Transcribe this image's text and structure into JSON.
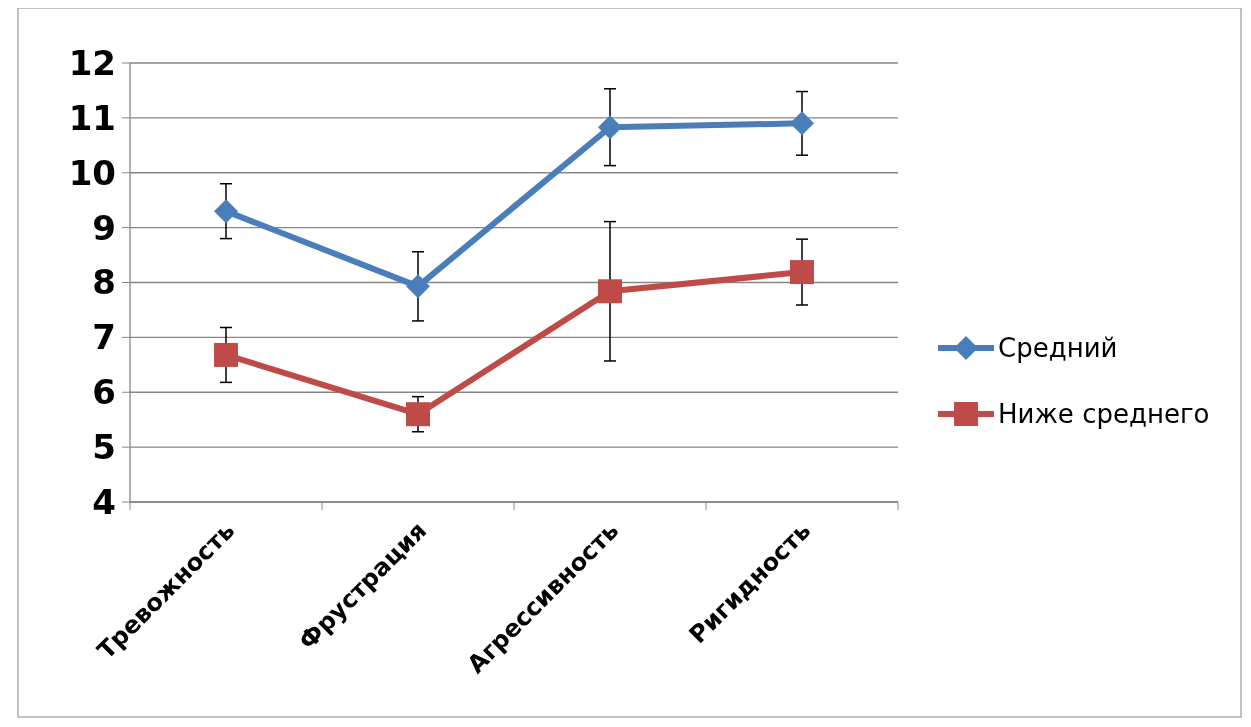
{
  "chart_data": {
    "type": "line",
    "categories": [
      "Тревожность",
      "Фрустрация",
      "Агрессивность",
      "Ригидность"
    ],
    "series": [
      {
        "name": "Средний",
        "color": "#4a7ebb",
        "marker": "diamond",
        "values": [
          9.3,
          7.93,
          10.83,
          10.9
        ],
        "errors": [
          0.5,
          0.63,
          0.7,
          0.58
        ]
      },
      {
        "name": "Ниже среднего",
        "color": "#be4b48",
        "marker": "square",
        "values": [
          6.68,
          5.6,
          7.84,
          8.19
        ],
        "errors": [
          0.5,
          0.32,
          1.27,
          0.6
        ]
      }
    ],
    "ylim": [
      4,
      12
    ],
    "yticks": [
      4,
      5,
      6,
      7,
      8,
      9,
      10,
      11,
      12
    ],
    "grid": "y",
    "legend": "right"
  }
}
